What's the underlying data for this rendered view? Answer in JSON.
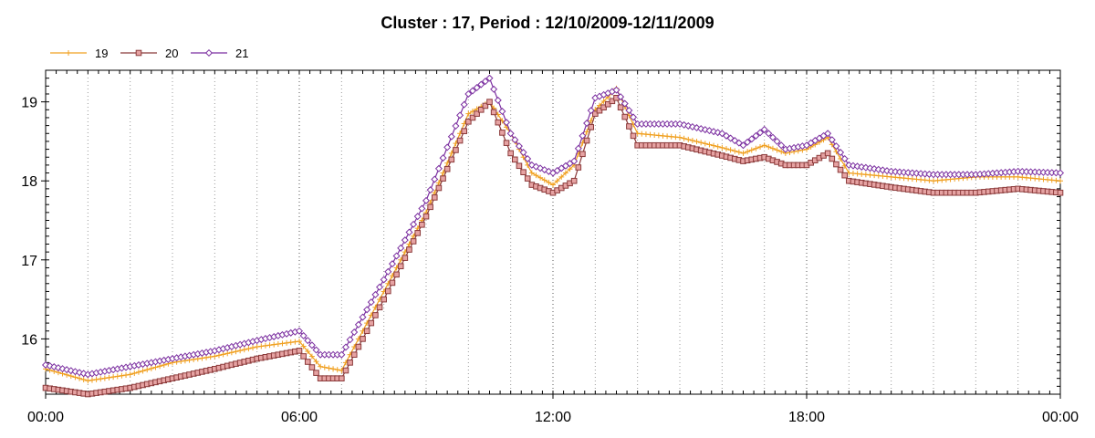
{
  "chart_data": {
    "type": "line",
    "title": "Cluster : 17, Period : 12/10/2009-12/11/2009",
    "xlabel": "",
    "ylabel": "",
    "x_ticks": [
      "00:00",
      "06:00",
      "12:00",
      "18:00",
      "00:00"
    ],
    "y_ticks": [
      "16",
      "17",
      "18",
      "19"
    ],
    "xlim": [
      0,
      24
    ],
    "ylim": [
      15.3,
      19.4
    ],
    "grid": true,
    "legend_position": "top-left",
    "x_unit": "hours",
    "series": [
      {
        "name": "19",
        "color": "#f0a020",
        "marker": "plus",
        "points": [
          [
            0,
            15.62
          ],
          [
            1,
            15.47
          ],
          [
            2,
            15.55
          ],
          [
            3,
            15.7
          ],
          [
            4,
            15.78
          ],
          [
            5,
            15.9
          ],
          [
            6,
            15.97
          ],
          [
            6.5,
            15.65
          ],
          [
            7,
            15.6
          ],
          [
            8,
            16.6
          ],
          [
            9,
            17.6
          ],
          [
            10,
            18.85
          ],
          [
            10.5,
            19.0
          ],
          [
            11,
            18.6
          ],
          [
            11.5,
            18.1
          ],
          [
            12,
            17.95
          ],
          [
            12.5,
            18.2
          ],
          [
            13,
            18.9
          ],
          [
            13.5,
            19.17
          ],
          [
            14,
            18.6
          ],
          [
            15,
            18.55
          ],
          [
            16,
            18.42
          ],
          [
            16.5,
            18.35
          ],
          [
            17,
            18.45
          ],
          [
            17.5,
            18.35
          ],
          [
            18,
            18.4
          ],
          [
            18.5,
            18.55
          ],
          [
            19,
            18.1
          ],
          [
            20,
            18.05
          ],
          [
            21,
            18.0
          ],
          [
            22,
            18.05
          ],
          [
            23,
            18.05
          ],
          [
            24,
            18.0
          ]
        ]
      },
      {
        "name": "20",
        "color": "#8b3a3a",
        "marker": "square",
        "points": [
          [
            0,
            15.38
          ],
          [
            1,
            15.3
          ],
          [
            2,
            15.38
          ],
          [
            3,
            15.5
          ],
          [
            4,
            15.62
          ],
          [
            5,
            15.75
          ],
          [
            6,
            15.85
          ],
          [
            6.5,
            15.5
          ],
          [
            7,
            15.5
          ],
          [
            8,
            16.5
          ],
          [
            9,
            17.55
          ],
          [
            10,
            18.75
          ],
          [
            10.5,
            19.0
          ],
          [
            11,
            18.35
          ],
          [
            11.5,
            17.95
          ],
          [
            12,
            17.85
          ],
          [
            12.5,
            18.0
          ],
          [
            13,
            18.85
          ],
          [
            13.5,
            19.05
          ],
          [
            14,
            18.45
          ],
          [
            15,
            18.45
          ],
          [
            16,
            18.32
          ],
          [
            16.5,
            18.25
          ],
          [
            17,
            18.3
          ],
          [
            17.5,
            18.2
          ],
          [
            18,
            18.2
          ],
          [
            18.5,
            18.35
          ],
          [
            19,
            18.0
          ],
          [
            20,
            17.92
          ],
          [
            21,
            17.85
          ],
          [
            22,
            17.85
          ],
          [
            23,
            17.9
          ],
          [
            24,
            17.85
          ]
        ]
      },
      {
        "name": "21",
        "color": "#7b2fa0",
        "marker": "diamond",
        "points": [
          [
            0,
            15.67
          ],
          [
            1,
            15.55
          ],
          [
            2,
            15.65
          ],
          [
            3,
            15.75
          ],
          [
            4,
            15.85
          ],
          [
            5,
            15.98
          ],
          [
            6,
            16.1
          ],
          [
            6.5,
            15.8
          ],
          [
            7,
            15.8
          ],
          [
            8,
            16.75
          ],
          [
            9,
            17.75
          ],
          [
            10,
            19.1
          ],
          [
            10.5,
            19.3
          ],
          [
            11,
            18.6
          ],
          [
            11.5,
            18.2
          ],
          [
            12,
            18.1
          ],
          [
            12.5,
            18.25
          ],
          [
            13,
            19.05
          ],
          [
            13.5,
            19.15
          ],
          [
            14,
            18.72
          ],
          [
            15,
            18.72
          ],
          [
            16,
            18.6
          ],
          [
            16.5,
            18.45
          ],
          [
            17,
            18.65
          ],
          [
            17.5,
            18.4
          ],
          [
            18,
            18.45
          ],
          [
            18.5,
            18.6
          ],
          [
            19,
            18.2
          ],
          [
            20,
            18.12
          ],
          [
            21,
            18.08
          ],
          [
            22,
            18.08
          ],
          [
            23,
            18.12
          ],
          [
            24,
            18.1
          ]
        ]
      }
    ]
  }
}
